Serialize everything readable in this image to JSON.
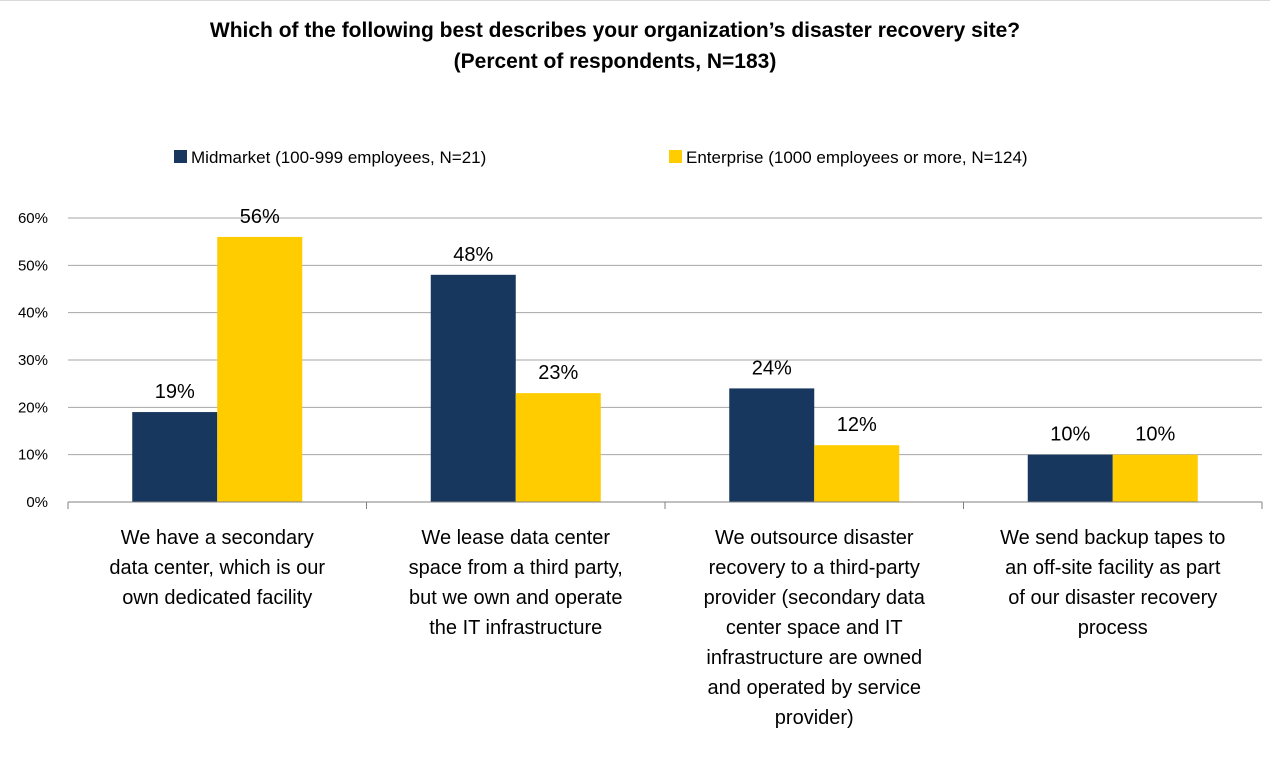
{
  "chart_data": {
    "type": "bar",
    "title": "Which of the following best describes your organization’s disaster recovery site?",
    "subtitle": "(Percent of respondents, N=183)",
    "categories": [
      "We have a secondary\ndata center, which is our\nown dedicated facility",
      "We lease data center\nspace from a third party,\nbut we own and operate\nthe IT infrastructure",
      "We outsource disaster\nrecovery to a third-party\nprovider (secondary data\ncenter space and IT\ninfrastructure are owned\nand operated by service\nprovider)",
      "We send backup tapes to\nan off-site facility as part\nof our disaster recovery\nprocess"
    ],
    "series": [
      {
        "name": "Midmarket (100-999 employees, N=21)",
        "values": [
          19,
          48,
          24,
          10
        ],
        "labels": [
          "19%",
          "48%",
          "24%",
          "10%"
        ],
        "color": "#17375e"
      },
      {
        "name": "Enterprise (1000 employees or more, N=124)",
        "values": [
          56,
          23,
          12,
          10
        ],
        "labels": [
          "56%",
          "23%",
          "12%",
          "10%"
        ],
        "color": "#ffcc00"
      }
    ],
    "ylim": [
      0,
      60
    ],
    "yticks": [
      "0%",
      "10%",
      "20%",
      "30%",
      "40%",
      "50%",
      "60%"
    ],
    "grid": true,
    "legend_position": "top"
  }
}
